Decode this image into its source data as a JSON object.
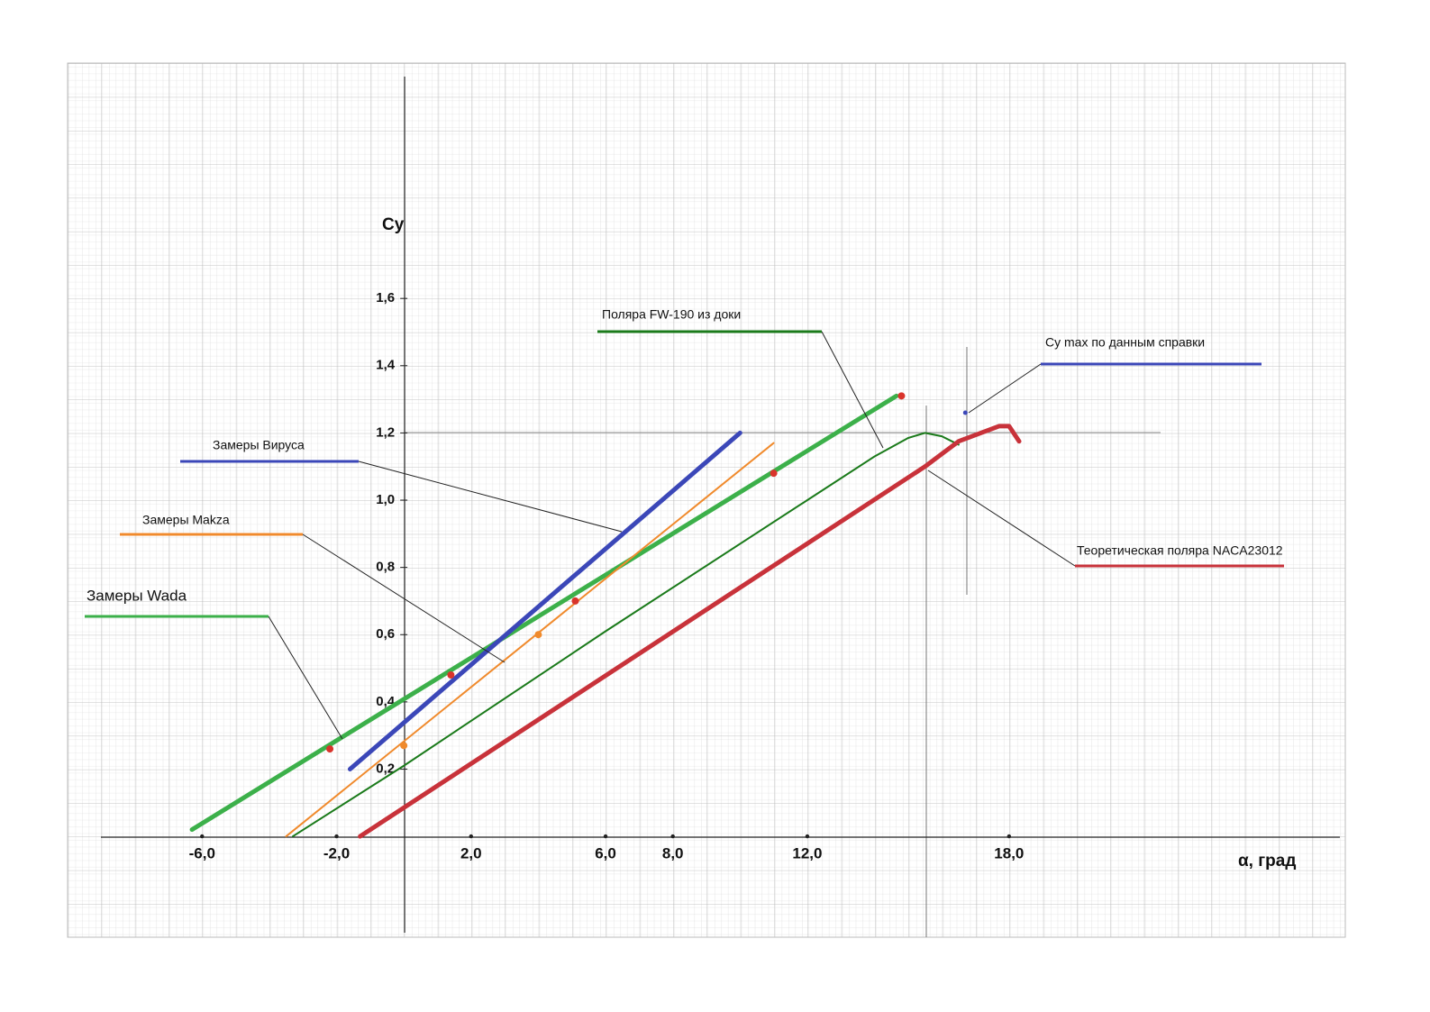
{
  "chart_data": {
    "type": "line",
    "x_label": "α, град",
    "y_label": "Cy",
    "xlim": [
      -10,
      28
    ],
    "ylim": [
      -0.3,
      2.3
    ],
    "xticks": [
      {
        "value": -6,
        "label": "-6,0"
      },
      {
        "value": -2,
        "label": "-2,0"
      },
      {
        "value": 2,
        "label": "2,0"
      },
      {
        "value": 6,
        "label": "6,0"
      },
      {
        "value": 8,
        "label": "8,0"
      },
      {
        "value": 12,
        "label": "12,0"
      },
      {
        "value": 18,
        "label": "18,0"
      }
    ],
    "yticks": [
      {
        "value": 0.2,
        "label": "0,2"
      },
      {
        "value": 0.4,
        "label": "0,4"
      },
      {
        "value": 0.6,
        "label": "0,6"
      },
      {
        "value": 0.8,
        "label": "0,8"
      },
      {
        "value": 1.0,
        "label": "1,0"
      },
      {
        "value": 1.2,
        "label": "1,2"
      },
      {
        "value": 1.4,
        "label": "1,4"
      },
      {
        "value": 1.6,
        "label": "1,6"
      }
    ],
    "grid": true,
    "series": [
      {
        "name": "Замеры Wada",
        "type": "line",
        "color": "#3cb04a",
        "x": [
          -6.3,
          14.65
        ],
        "values": [
          0.02,
          1.31
        ]
      },
      {
        "name": "Замеры Вируса",
        "type": "line",
        "color": "#3b47b8",
        "x": [
          -1.6,
          10.0
        ],
        "values": [
          0.2,
          1.2
        ]
      },
      {
        "name": "Замеры Makza",
        "type": "line",
        "color": "#f08a2c",
        "x": [
          -3.5,
          11.0
        ],
        "values": [
          0.0,
          1.17
        ]
      },
      {
        "name": "Поляра FW-190 из доки",
        "type": "line",
        "color": "#1a7a1a",
        "x": [
          -3.3,
          0,
          6,
          12,
          14,
          15,
          15.5,
          16,
          16.5
        ],
        "values": [
          0.0,
          0.21,
          0.61,
          1.0,
          1.13,
          1.185,
          1.2,
          1.19,
          1.165
        ]
      },
      {
        "name": "Теоретическая поляра NACA23012",
        "type": "line",
        "color": "#c8323a",
        "x": [
          -1.3,
          15.5,
          16.5,
          17.7,
          18.0,
          18.3
        ],
        "values": [
          0.0,
          1.1,
          1.175,
          1.22,
          1.22,
          1.175
        ]
      },
      {
        "name": "Cy max  по данным справки",
        "type": "scatter",
        "color": "#3b47b8",
        "x": [
          16.7
        ],
        "values": [
          1.26
        ]
      },
      {
        "type": "scatter",
        "color": "#d9342b",
        "x": [
          -2.2,
          1.4,
          5.1,
          11.0,
          14.8
        ],
        "values": [
          0.26,
          0.48,
          0.7,
          1.08,
          1.31
        ]
      },
      {
        "type": "scatter",
        "color": "#f08a2c",
        "x": [
          0.0,
          4.0
        ],
        "values": [
          0.27,
          0.6
        ]
      }
    ]
  }
}
